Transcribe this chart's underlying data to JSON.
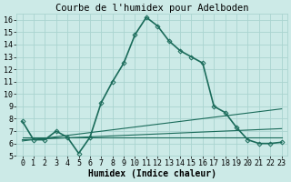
{
  "title": "Courbe de l'humidex pour Adelboden",
  "xlabel": "Humidex (Indice chaleur)",
  "bg_color": "#cceae7",
  "grid_color": "#aad4d0",
  "line_color": "#1a6b5a",
  "xlim": [
    -0.5,
    23.5
  ],
  "ylim": [
    5,
    16.5
  ],
  "yticks": [
    5,
    6,
    7,
    8,
    9,
    10,
    11,
    12,
    13,
    14,
    15,
    16
  ],
  "xticks": [
    0,
    1,
    2,
    3,
    4,
    5,
    6,
    7,
    8,
    9,
    10,
    11,
    12,
    13,
    14,
    15,
    16,
    17,
    18,
    19,
    20,
    21,
    22,
    23
  ],
  "main_series": {
    "x": [
      0,
      1,
      2,
      3,
      4,
      5,
      6,
      7,
      8,
      9,
      10,
      11,
      12,
      13,
      14,
      15,
      16,
      17,
      18,
      19,
      20,
      21,
      22,
      23
    ],
    "y": [
      7.8,
      6.3,
      6.3,
      7.0,
      6.5,
      5.2,
      6.5,
      9.3,
      11.0,
      12.5,
      14.8,
      16.2,
      15.5,
      14.3,
      13.5,
      13.0,
      12.5,
      9.0,
      8.5,
      7.3,
      6.3,
      6.0,
      6.0,
      6.1
    ]
  },
  "flat_lines": [
    {
      "x": [
        0,
        23
      ],
      "y": [
        6.5,
        6.5
      ]
    },
    {
      "x": [
        0,
        23
      ],
      "y": [
        6.3,
        7.2
      ]
    },
    {
      "x": [
        0,
        23
      ],
      "y": [
        6.2,
        8.8
      ]
    }
  ],
  "tick_fontsize": 6,
  "label_fontsize": 7,
  "title_fontsize": 7.5
}
